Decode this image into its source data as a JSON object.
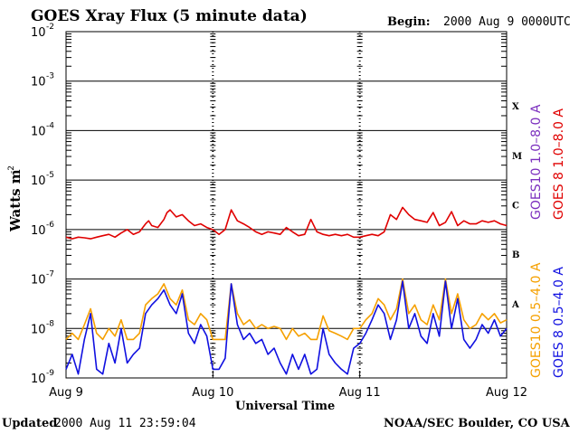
{
  "header": {
    "title": "GOES Xray Flux (5 minute data)",
    "begin_label": "Begin:",
    "begin_value": "2000 Aug 9 0000UTC"
  },
  "footer": {
    "updated_label": "Updated",
    "updated_value": "2000 Aug 11 23:59:04",
    "credit": "NOAA/SEC Boulder, CO USA"
  },
  "chart_data": {
    "type": "line",
    "title": "GOES Xray Flux (5 minute data)",
    "xlabel": "Universal Time",
    "ylabel": "Watts m",
    "ylabel_sup": "-2",
    "y_scale": "log",
    "ylim": [
      1e-09,
      0.01
    ],
    "y_ticks": [
      {
        "base": "10",
        "exp": "-2"
      },
      {
        "base": "10",
        "exp": "-3"
      },
      {
        "base": "10",
        "exp": "-4"
      },
      {
        "base": "10",
        "exp": "-5"
      },
      {
        "base": "10",
        "exp": "-6"
      },
      {
        "base": "10",
        "exp": "-7"
      },
      {
        "base": "10",
        "exp": "-8"
      },
      {
        "base": "10",
        "exp": "-9"
      }
    ],
    "x_ticks": [
      "Aug 9",
      "Aug 10",
      "Aug 11",
      "Aug 12"
    ],
    "xlim_hours": [
      0,
      72
    ],
    "flare_classes": [
      "X",
      "M",
      "C",
      "B",
      "A"
    ],
    "grid": "horizontal at each decade from 1e-8 to 1e-4",
    "legend": [
      {
        "label": "GOES10 1.0–8.0 A",
        "color": "#7b2fbe"
      },
      {
        "label": "GOES 8 1.0–8.0 A",
        "color": "#e00000"
      },
      {
        "label": "GOES10 0.5–4.0 A",
        "color": "#f5a000"
      },
      {
        "label": "GOES 8 0.5–4.0 A",
        "color": "#1010e0"
      }
    ],
    "series": [
      {
        "name": "GOES 8 1.0–8.0 A",
        "color": "#e00000",
        "x": [
          0,
          1,
          2,
          3,
          4,
          5,
          6,
          7,
          8,
          9,
          10,
          11,
          12,
          13,
          13.5,
          14,
          15,
          16,
          16.5,
          17,
          18,
          19,
          20,
          21,
          22,
          23,
          24,
          25,
          26,
          27,
          28,
          29,
          30,
          31,
          32,
          33,
          34,
          35,
          36,
          37,
          38,
          39,
          40,
          41,
          42,
          43,
          44,
          45,
          46,
          47,
          48,
          49,
          50,
          51,
          52,
          53,
          54,
          55,
          56,
          57,
          58,
          59,
          60,
          61,
          62,
          63,
          64,
          65,
          66,
          67,
          68,
          69,
          70,
          71,
          72
        ],
        "y": [
          7e-07,
          6.5e-07,
          7e-07,
          6.8e-07,
          6.5e-07,
          7e-07,
          7.5e-07,
          8e-07,
          7e-07,
          8.5e-07,
          1e-06,
          8e-07,
          9e-07,
          1.3e-06,
          1.5e-06,
          1.2e-06,
          1.1e-06,
          1.6e-06,
          2.2e-06,
          2.5e-06,
          1.8e-06,
          2e-06,
          1.5e-06,
          1.2e-06,
          1.3e-06,
          1.1e-06,
          1e-06,
          8e-07,
          1e-06,
          2.5e-06,
          1.5e-06,
          1.3e-06,
          1.1e-06,
          9e-07,
          8e-07,
          9e-07,
          8.5e-07,
          8e-07,
          1.1e-06,
          9e-07,
          7.5e-07,
          8e-07,
          1.6e-06,
          9e-07,
          8e-07,
          7.5e-07,
          8e-07,
          7.5e-07,
          8e-07,
          7e-07,
          7e-07,
          7.5e-07,
          8e-07,
          7.5e-07,
          9e-07,
          2e-06,
          1.6e-06,
          2.8e-06,
          2e-06,
          1.6e-06,
          1.5e-06,
          1.4e-06,
          2.2e-06,
          1.2e-06,
          1.4e-06,
          2.3e-06,
          1.2e-06,
          1.5e-06,
          1.3e-06,
          1.3e-06,
          1.5e-06,
          1.4e-06,
          1.5e-06,
          1.3e-06,
          1.2e-06
        ]
      },
      {
        "name": "GOES10 0.5–4.0 A",
        "color": "#f5a000",
        "x": [
          0,
          1,
          2,
          3,
          4,
          5,
          6,
          7,
          8,
          9,
          10,
          11,
          12,
          13,
          14,
          15,
          16,
          17,
          18,
          19,
          20,
          21,
          22,
          23,
          24,
          25,
          26,
          27,
          28,
          29,
          30,
          31,
          32,
          33,
          34,
          35,
          36,
          37,
          38,
          39,
          40,
          41,
          42,
          43,
          44,
          45,
          46,
          47,
          48,
          49,
          50,
          51,
          52,
          53,
          54,
          55,
          56,
          57,
          58,
          59,
          60,
          61,
          62,
          63,
          64,
          65,
          66,
          67,
          68,
          69,
          70,
          71,
          72
        ],
        "y": [
          6e-09,
          8e-09,
          6e-09,
          1.2e-08,
          2.5e-08,
          8e-09,
          6e-09,
          1e-08,
          7e-09,
          1.5e-08,
          6e-09,
          6e-09,
          8e-09,
          3e-08,
          4e-08,
          5e-08,
          8e-08,
          4e-08,
          3e-08,
          6e-08,
          1.5e-08,
          1.2e-08,
          2e-08,
          1.5e-08,
          6e-09,
          6e-09,
          6e-09,
          8e-08,
          2e-08,
          1.2e-08,
          1.5e-08,
          1e-08,
          1.2e-08,
          1e-08,
          1.1e-08,
          1e-08,
          6e-09,
          1e-08,
          7e-09,
          8e-09,
          6e-09,
          6e-09,
          1.8e-08,
          9e-09,
          8e-09,
          7e-09,
          6e-09,
          1e-08,
          1e-08,
          1.5e-08,
          2e-08,
          4e-08,
          3e-08,
          1.5e-08,
          2.5e-08,
          1e-07,
          2e-08,
          3e-08,
          1.5e-08,
          1.2e-08,
          3e-08,
          1.5e-08,
          1e-07,
          2e-08,
          5e-08,
          1.5e-08,
          1e-08,
          1.2e-08,
          2e-08,
          1.5e-08,
          2e-08,
          1.3e-08,
          1.5e-08
        ]
      },
      {
        "name": "GOES 8 0.5–4.0 A",
        "color": "#1010e0",
        "x": [
          0,
          1,
          2,
          3,
          4,
          5,
          6,
          7,
          8,
          9,
          10,
          11,
          12,
          13,
          14,
          15,
          16,
          17,
          18,
          19,
          20,
          21,
          22,
          23,
          24,
          25,
          26,
          27,
          28,
          29,
          30,
          31,
          32,
          33,
          34,
          35,
          36,
          37,
          38,
          39,
          40,
          41,
          42,
          43,
          44,
          45,
          46,
          47,
          48,
          49,
          50,
          51,
          52,
          53,
          54,
          55,
          56,
          57,
          58,
          59,
          60,
          61,
          62,
          63,
          64,
          65,
          66,
          67,
          68,
          69,
          70,
          71,
          72
        ],
        "y": [
          1.5e-09,
          3e-09,
          1.2e-09,
          6e-09,
          2e-08,
          1.5e-09,
          1.2e-09,
          5e-09,
          2e-09,
          1e-08,
          2e-09,
          3e-09,
          4e-09,
          2e-08,
          3e-08,
          4e-08,
          6e-08,
          3e-08,
          2e-08,
          5e-08,
          8e-09,
          5e-09,
          1.2e-08,
          7e-09,
          1.5e-09,
          1.5e-09,
          2.5e-09,
          8e-08,
          1.2e-08,
          6e-09,
          8e-09,
          5e-09,
          6e-09,
          3e-09,
          4e-09,
          2e-09,
          1.2e-09,
          3e-09,
          1.5e-09,
          3e-09,
          1.2e-09,
          1.5e-09,
          1e-08,
          3e-09,
          2e-09,
          1.5e-09,
          1.2e-09,
          4e-09,
          5e-09,
          8e-09,
          1.5e-08,
          3e-08,
          2e-08,
          6e-09,
          1.5e-08,
          9e-08,
          1e-08,
          2e-08,
          7e-09,
          5e-09,
          2e-08,
          7e-09,
          9e-08,
          1e-08,
          4e-08,
          6e-09,
          4e-09,
          6e-09,
          1.2e-08,
          8e-09,
          1.5e-08,
          7e-09,
          1e-08
        ]
      }
    ]
  }
}
